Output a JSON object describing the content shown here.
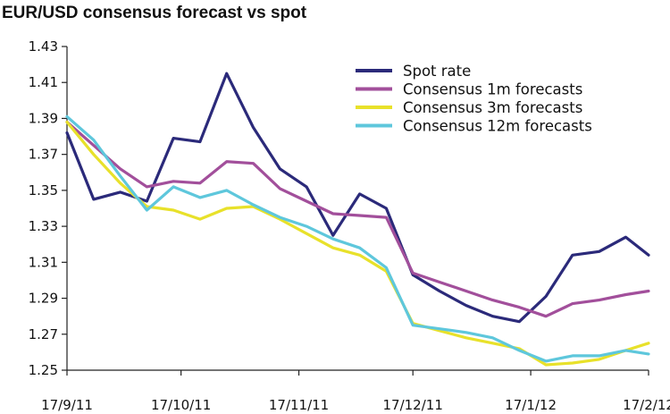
{
  "chart_data": {
    "type": "line",
    "title": "EUR/USD consensus forecast vs spot",
    "xlabel": "",
    "ylabel": "",
    "ylim": [
      1.25,
      1.43
    ],
    "yticks": [
      "1.43",
      "1.41",
      "1.39",
      "1.37",
      "1.35",
      "1.33",
      "1.31",
      "1.29",
      "1.27",
      "1.25"
    ],
    "xticks": [
      "17/9/11",
      "17/10/11",
      "17/11/11",
      "17/12/11",
      "17/1/12",
      "17/2/12"
    ],
    "grid": false,
    "legend_position": "top-right",
    "x": [
      "2011-09-17",
      "2011-09-24",
      "2011-10-01",
      "2011-10-08",
      "2011-10-15",
      "2011-10-22",
      "2011-10-29",
      "2011-11-05",
      "2011-11-12",
      "2011-11-19",
      "2011-11-26",
      "2011-12-03",
      "2011-12-10",
      "2011-12-17",
      "2011-12-24",
      "2011-12-31",
      "2012-01-07",
      "2012-01-14",
      "2012-01-21",
      "2012-01-28",
      "2012-02-04",
      "2012-02-11",
      "2012-02-17"
    ],
    "series": [
      {
        "name": "Spot rate",
        "color": "#2b2a7a",
        "values": [
          1.382,
          1.345,
          1.349,
          1.344,
          1.379,
          1.377,
          1.415,
          1.385,
          1.362,
          1.352,
          1.325,
          1.348,
          1.34,
          1.303,
          1.294,
          1.286,
          1.28,
          1.277,
          1.291,
          1.314,
          1.316,
          1.324,
          1.314
        ]
      },
      {
        "name": "Consensus 1m forecasts",
        "color": "#a24f9b",
        "values": [
          1.388,
          1.375,
          1.362,
          1.352,
          1.355,
          1.354,
          1.366,
          1.365,
          1.351,
          1.344,
          1.337,
          1.336,
          1.335,
          1.304,
          1.299,
          1.294,
          1.289,
          1.285,
          1.28,
          1.287,
          1.289,
          1.292,
          1.294
        ]
      },
      {
        "name": "Consensus 3m forecasts",
        "color": "#e8e12a",
        "values": [
          1.388,
          1.37,
          1.354,
          1.341,
          1.339,
          1.334,
          1.34,
          1.341,
          1.334,
          1.326,
          1.318,
          1.314,
          1.305,
          1.276,
          1.272,
          1.268,
          1.265,
          1.262,
          1.253,
          1.254,
          1.256,
          1.261,
          1.265
        ]
      },
      {
        "name": "Consensus 12m forecasts",
        "color": "#5ec7dc",
        "values": [
          1.391,
          1.378,
          1.358,
          1.339,
          1.352,
          1.346,
          1.35,
          1.342,
          1.335,
          1.33,
          1.323,
          1.318,
          1.307,
          1.275,
          1.273,
          1.271,
          1.268,
          1.261,
          1.255,
          1.258,
          1.258,
          1.261,
          1.259
        ]
      }
    ]
  }
}
